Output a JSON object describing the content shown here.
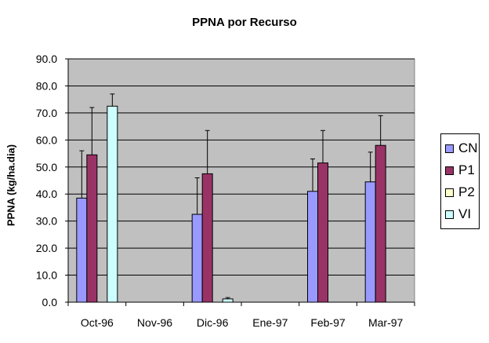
{
  "chart_data": {
    "type": "bar",
    "title": "PPNA por Recurso",
    "xlabel": "",
    "ylabel": "PPNA (kg/ha.dia)",
    "ylim": [
      0,
      90
    ],
    "yticks": [
      "0.0",
      "10.0",
      "20.0",
      "30.0",
      "40.0",
      "50.0",
      "60.0",
      "70.0",
      "80.0",
      "90.0"
    ],
    "categories": [
      "Oct-96",
      "Nov-96",
      "Dic-96",
      "Ene-97",
      "Feb-97",
      "Mar-97"
    ],
    "series": [
      {
        "name": "CN",
        "color": "#9999ff",
        "values": [
          38.5,
          null,
          32.5,
          null,
          41.0,
          44.5
        ],
        "errors": [
          17.5,
          null,
          13.5,
          null,
          12.0,
          11.0
        ]
      },
      {
        "name": "P1",
        "color": "#993366",
        "values": [
          54.5,
          null,
          47.5,
          null,
          51.5,
          58.0
        ],
        "errors": [
          17.5,
          null,
          16.0,
          null,
          12.0,
          11.0
        ]
      },
      {
        "name": "P2",
        "color": "#ffffcc",
        "values": [
          null,
          null,
          null,
          null,
          null,
          null
        ],
        "errors": [
          null,
          null,
          null,
          null,
          null,
          null
        ]
      },
      {
        "name": "VI",
        "color": "#ccffff",
        "values": [
          72.5,
          null,
          1.2,
          null,
          null,
          null
        ],
        "errors": [
          4.5,
          null,
          0.5,
          null,
          null,
          null
        ]
      }
    ],
    "grid": true,
    "plot_background": "#c0c0c0",
    "legend_position": "right"
  }
}
